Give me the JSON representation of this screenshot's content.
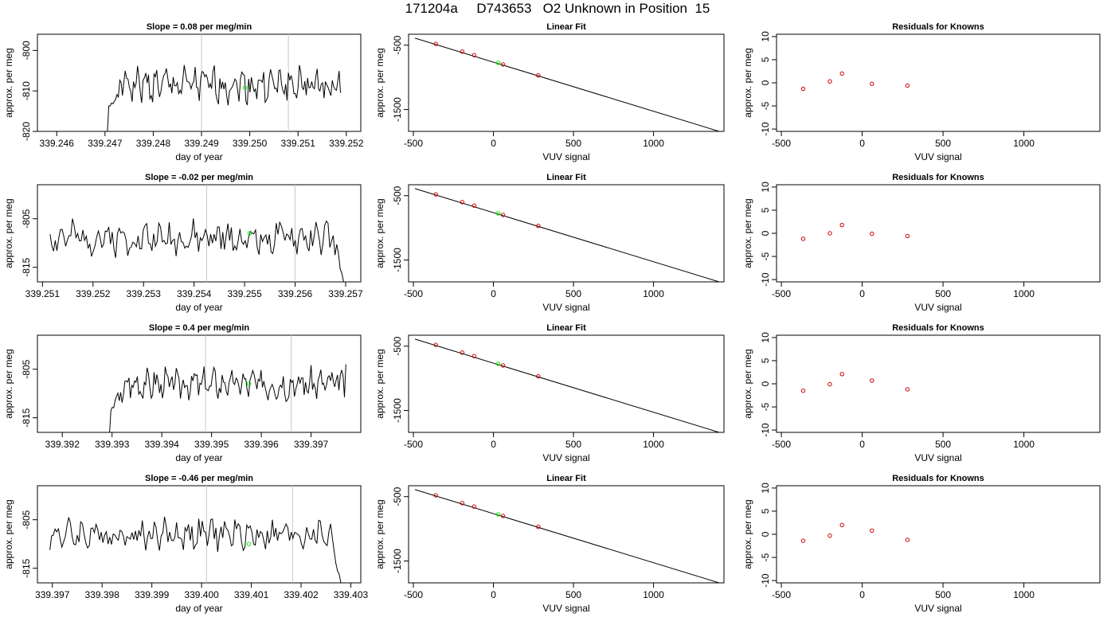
{
  "title": "171204a     D743653   O2 Unknown in Position  15",
  "colors": {
    "trace": "#000000",
    "grid": "#c8c8c8",
    "marker_known": "#cc0000",
    "marker_unknown": "#00ee00"
  },
  "chart_data": [
    {
      "type": "line",
      "row": 0,
      "col": 0,
      "title": "Slope =  0.08  per meg/min",
      "xlabel": "day of year",
      "ylabel": "approx. per meg",
      "xlim": [
        339.2456,
        339.2523
      ],
      "ylim": [
        -820,
        -796
      ],
      "xticks": [
        "339.246",
        "339.247",
        "339.248",
        "339.249",
        "339.250",
        "339.251",
        "339.252"
      ],
      "yticks": [
        "-800",
        "-810",
        "-820"
      ],
      "ytick_values": [
        -800,
        -810,
        -820
      ],
      "vlines": [
        339.249,
        339.2508
      ],
      "trace": {
        "x_start": 339.24705,
        "x_end": 339.25188,
        "y_start": -820,
        "y_initial": -815,
        "y_mean": -808.5,
        "amplitude": 3.2,
        "seed": 1,
        "edge": "start"
      },
      "unknown_marker": {
        "x": 339.2499,
        "y": -809.2
      }
    },
    {
      "type": "line",
      "row": 1,
      "col": 0,
      "title": "Slope =  -0.02  per meg/min",
      "xlabel": "day of year",
      "ylabel": "approx. per meg",
      "xlim": [
        339.2509,
        339.2573
      ],
      "ylim": [
        -818,
        -798
      ],
      "xticks": [
        "339.251",
        "339.252",
        "339.253",
        "339.254",
        "339.255",
        "339.256",
        "339.257"
      ],
      "yticks": [
        "-805",
        "-815"
      ],
      "ytick_values": [
        -805,
        -815
      ],
      "vlines": [
        339.25425,
        339.256
      ],
      "trace": {
        "x_start": 339.25115,
        "x_end": 339.25696,
        "y_start": -809,
        "y_end": -818,
        "y_mean": -809,
        "amplitude": 2.6,
        "seed": 2,
        "edge": "end"
      },
      "unknown_marker": {
        "x": 339.2551,
        "y": -808.0
      }
    },
    {
      "type": "line",
      "row": 2,
      "col": 0,
      "title": "Slope =  0.4  per meg/min",
      "xlabel": "day of year",
      "ylabel": "approx. per meg",
      "xlim": [
        339.3915,
        339.398
      ],
      "ylim": [
        -818,
        -798
      ],
      "xticks": [
        "339.392",
        "339.393",
        "339.394",
        "339.395",
        "339.396",
        "339.397"
      ],
      "yticks": [
        "-805",
        "-815"
      ],
      "ytick_values": [
        -805,
        -815
      ],
      "vlines": [
        339.39488,
        339.3966
      ],
      "trace": {
        "x_start": 339.39295,
        "x_end": 339.3977,
        "y_start": -818,
        "y_initial": -814,
        "y_mean": -808,
        "amplitude": 2.4,
        "seed": 3,
        "edge": "start",
        "y_last": -804
      },
      "unknown_marker": {
        "x": 339.39575,
        "y": -808.0
      }
    },
    {
      "type": "line",
      "row": 3,
      "col": 0,
      "title": "Slope =  -0.46  per meg/min",
      "xlabel": "day of year",
      "ylabel": "approx. per meg",
      "xlim": [
        339.3967,
        339.4032
      ],
      "ylim": [
        -818,
        -798
      ],
      "xticks": [
        "339.397",
        "339.398",
        "339.399",
        "339.400",
        "339.401",
        "339.402",
        "339.403"
      ],
      "yticks": [
        "-805",
        "-815"
      ],
      "ytick_values": [
        -805,
        -815
      ],
      "vlines": [
        339.4001,
        339.40183
      ],
      "trace": {
        "x_start": 339.39695,
        "x_end": 339.4028,
        "y_start": -808,
        "y_end": -818,
        "y_mean": -808,
        "amplitude": 2.4,
        "seed": 4,
        "edge": "end"
      },
      "unknown_marker": {
        "x": 339.40095,
        "y": -810.0
      }
    },
    {
      "type": "scatter",
      "row": 0,
      "col": 1,
      "title": "Linear Fit",
      "xlabel": "VUV signal",
      "ylabel": "approx. per meg",
      "xlim": [
        -530,
        1440
      ],
      "ylim": [
        -1840,
        -330
      ],
      "xticks": [
        "-500",
        "0",
        "500",
        "1000"
      ],
      "xtick_values": [
        -500,
        0,
        500,
        1000
      ],
      "yticks": [
        "-500",
        "-1500"
      ],
      "ytick_values": [
        -500,
        -1500
      ],
      "fit_line": {
        "x": [
          -490,
          1410
        ],
        "y": [
          -390,
          -1840
        ]
      },
      "points": [
        {
          "x": -360,
          "y": -480
        },
        {
          "x": -195,
          "y": -600
        },
        {
          "x": -120,
          "y": -655
        },
        {
          "x": 60,
          "y": -800
        },
        {
          "x": 280,
          "y": -970
        }
      ],
      "unknown_point": {
        "x": 30,
        "y": -775
      }
    },
    {
      "type": "scatter",
      "row": 1,
      "col": 1,
      "title": "Linear Fit",
      "xlabel": "VUV signal",
      "ylabel": "approx. per meg",
      "xlim": [
        -530,
        1440
      ],
      "ylim": [
        -1840,
        -330
      ],
      "xticks": [
        "-500",
        "0",
        "500",
        "1000"
      ],
      "xtick_values": [
        -500,
        0,
        500,
        1000
      ],
      "yticks": [
        "-500",
        "-1500"
      ],
      "ytick_values": [
        -500,
        -1500
      ],
      "fit_line": {
        "x": [
          -490,
          1410
        ],
        "y": [
          -390,
          -1840
        ]
      },
      "points": [
        {
          "x": -360,
          "y": -480
        },
        {
          "x": -195,
          "y": -600
        },
        {
          "x": -120,
          "y": -655
        },
        {
          "x": 60,
          "y": -800
        },
        {
          "x": 280,
          "y": -970
        }
      ],
      "unknown_point": {
        "x": 30,
        "y": -775
      }
    },
    {
      "type": "scatter",
      "row": 2,
      "col": 1,
      "title": "Linear Fit",
      "xlabel": "VUV signal",
      "ylabel": "approx. per meg",
      "xlim": [
        -530,
        1440
      ],
      "ylim": [
        -1840,
        -330
      ],
      "xticks": [
        "-500",
        "0",
        "500",
        "1000"
      ],
      "xtick_values": [
        -500,
        0,
        500,
        1000
      ],
      "yticks": [
        "-500",
        "-1500"
      ],
      "ytick_values": [
        -500,
        -1500
      ],
      "fit_line": {
        "x": [
          -490,
          1410
        ],
        "y": [
          -390,
          -1840
        ]
      },
      "points": [
        {
          "x": -360,
          "y": -480
        },
        {
          "x": -195,
          "y": -600
        },
        {
          "x": -120,
          "y": -655
        },
        {
          "x": 60,
          "y": -800
        },
        {
          "x": 280,
          "y": -970
        }
      ],
      "unknown_point": {
        "x": 30,
        "y": -775
      }
    },
    {
      "type": "scatter",
      "row": 3,
      "col": 1,
      "title": "Linear Fit",
      "xlabel": "VUV signal",
      "ylabel": "approx. per meg",
      "xlim": [
        -530,
        1440
      ],
      "ylim": [
        -1840,
        -330
      ],
      "xticks": [
        "-500",
        "0",
        "500",
        "1000"
      ],
      "xtick_values": [
        -500,
        0,
        500,
        1000
      ],
      "yticks": [
        "-500",
        "-1500"
      ],
      "ytick_values": [
        -500,
        -1500
      ],
      "fit_line": {
        "x": [
          -490,
          1410
        ],
        "y": [
          -390,
          -1840
        ]
      },
      "points": [
        {
          "x": -360,
          "y": -480
        },
        {
          "x": -195,
          "y": -600
        },
        {
          "x": -120,
          "y": -655
        },
        {
          "x": 60,
          "y": -800
        },
        {
          "x": 280,
          "y": -970
        }
      ],
      "unknown_point": {
        "x": 30,
        "y": -775
      }
    },
    {
      "type": "scatter",
      "row": 0,
      "col": 2,
      "title": "Residuals for Knowns",
      "xlabel": "VUV signal",
      "ylabel": "approx. per meg",
      "xlim": [
        -530,
        1470
      ],
      "ylim": [
        -10.5,
        10.5
      ],
      "xticks": [
        "-500",
        "0",
        "500",
        "1000"
      ],
      "xtick_values": [
        -500,
        0,
        500,
        1000
      ],
      "yticks": [
        "10",
        "5",
        "0",
        "-5",
        "-10"
      ],
      "ytick_values": [
        10,
        5,
        0,
        -5,
        -10
      ],
      "points": [
        {
          "x": -365,
          "y": -1.3
        },
        {
          "x": -200,
          "y": 0.3
        },
        {
          "x": -125,
          "y": 2.0
        },
        {
          "x": 60,
          "y": -0.2
        },
        {
          "x": 280,
          "y": -0.6
        }
      ]
    },
    {
      "type": "scatter",
      "row": 1,
      "col": 2,
      "title": "Residuals for Knowns",
      "xlabel": "VUV signal",
      "ylabel": "approx. per meg",
      "xlim": [
        -530,
        1470
      ],
      "ylim": [
        -10.5,
        10.5
      ],
      "xticks": [
        "-500",
        "0",
        "500",
        "1000"
      ],
      "xtick_values": [
        -500,
        0,
        500,
        1000
      ],
      "yticks": [
        "10",
        "5",
        "0",
        "-5",
        "-10"
      ],
      "ytick_values": [
        10,
        5,
        0,
        -5,
        -10
      ],
      "points": [
        {
          "x": -365,
          "y": -1.2
        },
        {
          "x": -200,
          "y": 0.0
        },
        {
          "x": -125,
          "y": 1.8
        },
        {
          "x": 60,
          "y": -0.1
        },
        {
          "x": 280,
          "y": -0.6
        }
      ]
    },
    {
      "type": "scatter",
      "row": 2,
      "col": 2,
      "title": "Residuals for Knowns",
      "xlabel": "VUV signal",
      "ylabel": "approx. per meg",
      "xlim": [
        -530,
        1470
      ],
      "ylim": [
        -10.5,
        10.5
      ],
      "xticks": [
        "-500",
        "0",
        "500",
        "1000"
      ],
      "xtick_values": [
        -500,
        0,
        500,
        1000
      ],
      "yticks": [
        "10",
        "5",
        "0",
        "-5",
        "-10"
      ],
      "ytick_values": [
        10,
        5,
        0,
        -5,
        -10
      ],
      "points": [
        {
          "x": -365,
          "y": -1.5
        },
        {
          "x": -200,
          "y": -0.1
        },
        {
          "x": -125,
          "y": 2.1
        },
        {
          "x": 60,
          "y": 0.7
        },
        {
          "x": 280,
          "y": -1.2
        }
      ]
    },
    {
      "type": "scatter",
      "row": 3,
      "col": 2,
      "title": "Residuals for Knowns",
      "xlabel": "VUV signal",
      "ylabel": "approx. per meg",
      "xlim": [
        -530,
        1470
      ],
      "ylim": [
        -10.5,
        10.5
      ],
      "xticks": [
        "-500",
        "0",
        "500",
        "1000"
      ],
      "xtick_values": [
        -500,
        0,
        500,
        1000
      ],
      "yticks": [
        "10",
        "5",
        "0",
        "-5",
        "-10"
      ],
      "ytick_values": [
        10,
        5,
        0,
        -5,
        -10
      ],
      "points": [
        {
          "x": -365,
          "y": -1.4
        },
        {
          "x": -200,
          "y": -0.3
        },
        {
          "x": -125,
          "y": 2.0
        },
        {
          "x": 60,
          "y": 0.8
        },
        {
          "x": 280,
          "y": -1.2
        }
      ]
    }
  ]
}
